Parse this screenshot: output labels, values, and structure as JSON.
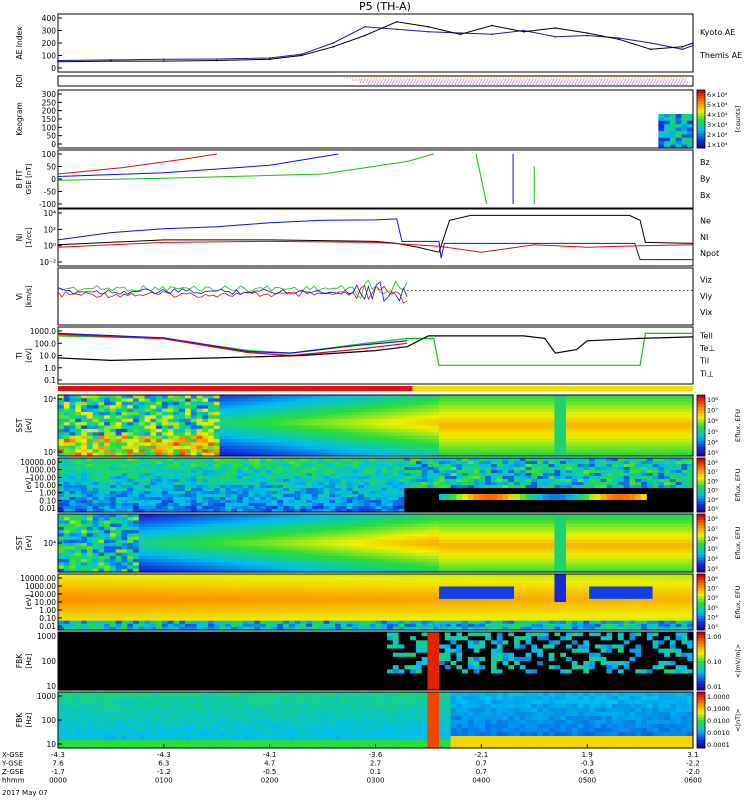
{
  "title": "P5 (TH-A)",
  "date_label": "2017 May 07",
  "colors": {
    "kyoto": "#1a1aa0",
    "themis": "#000000",
    "red": "#d01010",
    "green": "#10c010",
    "blue": "#1010d0",
    "black": "#000000"
  },
  "panels": [
    {
      "id": "ae",
      "ylabel": "AE Index",
      "unit": "",
      "yticks": [
        "400",
        "300",
        "200",
        "100",
        "0"
      ],
      "right": [
        {
          "text": "Kyoto AE",
          "color": "#1a1aa0"
        },
        {
          "text": "Themis AE",
          "color": "#000000"
        }
      ]
    },
    {
      "id": "roi",
      "ylabel": "ROI",
      "unit": "",
      "yticks": [],
      "right": []
    },
    {
      "id": "keogram",
      "ylabel": "Keogram",
      "unit": "",
      "yticks": [
        "300",
        "250",
        "200",
        "150",
        "100",
        "50",
        "0"
      ],
      "right": [],
      "cbar": [
        "6×10⁴",
        "5×10⁴",
        "4×10⁴",
        "3×10⁴",
        "2×10⁴",
        "1×10⁴"
      ],
      "cbar_unit": "[counts]"
    },
    {
      "id": "bfit",
      "ylabel": "B FIT",
      "unit": "GSE [nT]",
      "yticks": [
        "100",
        "50",
        "0",
        "-50",
        "-100"
      ],
      "right": [
        {
          "text": "Bz",
          "color": "#d01010"
        },
        {
          "text": "By",
          "color": "#10c010"
        },
        {
          "text": "Bx",
          "color": "#1010d0"
        }
      ]
    },
    {
      "id": "ni",
      "ylabel": "Ni",
      "unit": "[1/cc]",
      "yticks": [
        "10⁴",
        "10²",
        "10⁰",
        "10⁻²"
      ],
      "right": [
        {
          "text": "Ne",
          "color": "#d01010"
        },
        {
          "text": "NI",
          "color": "#000000"
        },
        {
          "text": "Npot",
          "color": "#1010d0"
        }
      ]
    },
    {
      "id": "vi",
      "ylabel": "Vi",
      "unit": "[km/s]",
      "yticks": [],
      "right": [
        {
          "text": "Viz",
          "color": "#d01010"
        },
        {
          "text": "Viy",
          "color": "#10c010"
        },
        {
          "text": "Vix",
          "color": "#1010d0"
        }
      ]
    },
    {
      "id": "ti",
      "ylabel": "TI",
      "unit": "[eV]",
      "yticks": [
        "1000.0",
        "100.0",
        "10.0",
        "1.0",
        "0.1"
      ],
      "right": [
        {
          "text": "Tell",
          "color": "#000000"
        },
        {
          "text": "Te⊥",
          "color": "#d01010"
        },
        {
          "text": "Til",
          "color": "#10c010"
        },
        {
          "text": "Ti⊥",
          "color": "#1010d0"
        }
      ]
    },
    {
      "id": "sst1",
      "ylabel": "SST",
      "unit": "[eV]",
      "yticks": [
        "10⁴",
        "10²"
      ],
      "right": [],
      "cbar": [
        "10⁸",
        "10⁷",
        "10⁶",
        "10⁵",
        "10⁴",
        "10³"
      ],
      "cbar_unit": "Eflux, EFU"
    },
    {
      "id": "esa1",
      "ylabel": "",
      "unit": "[eV]",
      "yticks": [
        "10000.00",
        "1000.00",
        "100.00",
        "10.00",
        "1.00",
        "0.10",
        "0.01"
      ],
      "right": [],
      "cbar": [
        "10⁸",
        "10⁷",
        "10⁶",
        "10⁵",
        "10⁴",
        "10³"
      ],
      "cbar_unit": "Eflux, EFU"
    },
    {
      "id": "sst2",
      "ylabel": "SST",
      "unit": "[eV]",
      "yticks": [
        "10⁴"
      ],
      "right": [],
      "cbar": [
        "10⁸",
        "10⁷",
        "10⁶",
        "10⁵",
        "10⁴",
        "10³"
      ],
      "cbar_unit": "Eflux, EFU"
    },
    {
      "id": "esa2",
      "ylabel": "",
      "unit": "[eV]",
      "yticks": [
        "10000.00",
        "1000.00",
        "100.00",
        "10.00",
        "1.00",
        "0.10",
        "0.01"
      ],
      "right": [],
      "cbar": [
        "10⁸",
        "10⁷",
        "10⁶",
        "10⁵",
        "10⁴",
        "10³"
      ],
      "cbar_unit": "Eflux, EFU"
    },
    {
      "id": "fbk1",
      "ylabel": "FBK",
      "unit": "[Hz]",
      "yticks": [
        "1000",
        "100",
        "10"
      ],
      "right": [],
      "cbar": [
        "1.00",
        "0.10",
        "0.01"
      ],
      "cbar_unit": "<|mV/m|>"
    },
    {
      "id": "fbk2",
      "ylabel": "FBK",
      "unit": "[Hz]",
      "yticks": [
        "1000",
        "100",
        "10"
      ],
      "right": [],
      "cbar": [
        "1.0000",
        "0.1000",
        "0.0100",
        "0.0010",
        "0.0001"
      ],
      "cbar_unit": "<|nT|>"
    }
  ],
  "xaxis": {
    "rows": [
      {
        "label": "X-GSE",
        "values": [
          "-4.3",
          "-4.3",
          "-4.1",
          "-3.6",
          "-2.1",
          "1.9",
          "3.1"
        ]
      },
      {
        "label": "Y-GSE",
        "values": [
          "7.6",
          "6.3",
          "4.7",
          "2.7",
          "0.7",
          "-0.3",
          "-2.2"
        ]
      },
      {
        "label": "Z-GSE",
        "values": [
          "-1.7",
          "-1.2",
          "-0.5",
          "0.1",
          "0.7",
          "-0.6",
          "-2.0"
        ]
      },
      {
        "label": "hhmm",
        "values": [
          "0000",
          "0100",
          "0200",
          "0300",
          "0400",
          "0500",
          "0600"
        ]
      }
    ]
  },
  "chart_data": {
    "type": "line",
    "x_hours": [
      0,
      0.5,
      1,
      1.5,
      2,
      2.3,
      2.6,
      2.9,
      3.2,
      3.5,
      3.8,
      4.1,
      4.4,
      4.7,
      5,
      5.3,
      5.6,
      5.9,
      6
    ],
    "series": [
      {
        "name": "Kyoto AE",
        "values": [
          60,
          65,
          70,
          72,
          80,
          110,
          200,
          330,
          310,
          290,
          280,
          270,
          300,
          250,
          260,
          240,
          200,
          150,
          180
        ]
      },
      {
        "name": "Themis AE",
        "values": [
          50,
          55,
          55,
          60,
          70,
          100,
          170,
          260,
          370,
          330,
          270,
          340,
          290,
          320,
          280,
          230,
          150,
          170,
          200
        ]
      }
    ],
    "ylim": [
      0,
      400
    ],
    "xlim": [
      0,
      6
    ]
  }
}
